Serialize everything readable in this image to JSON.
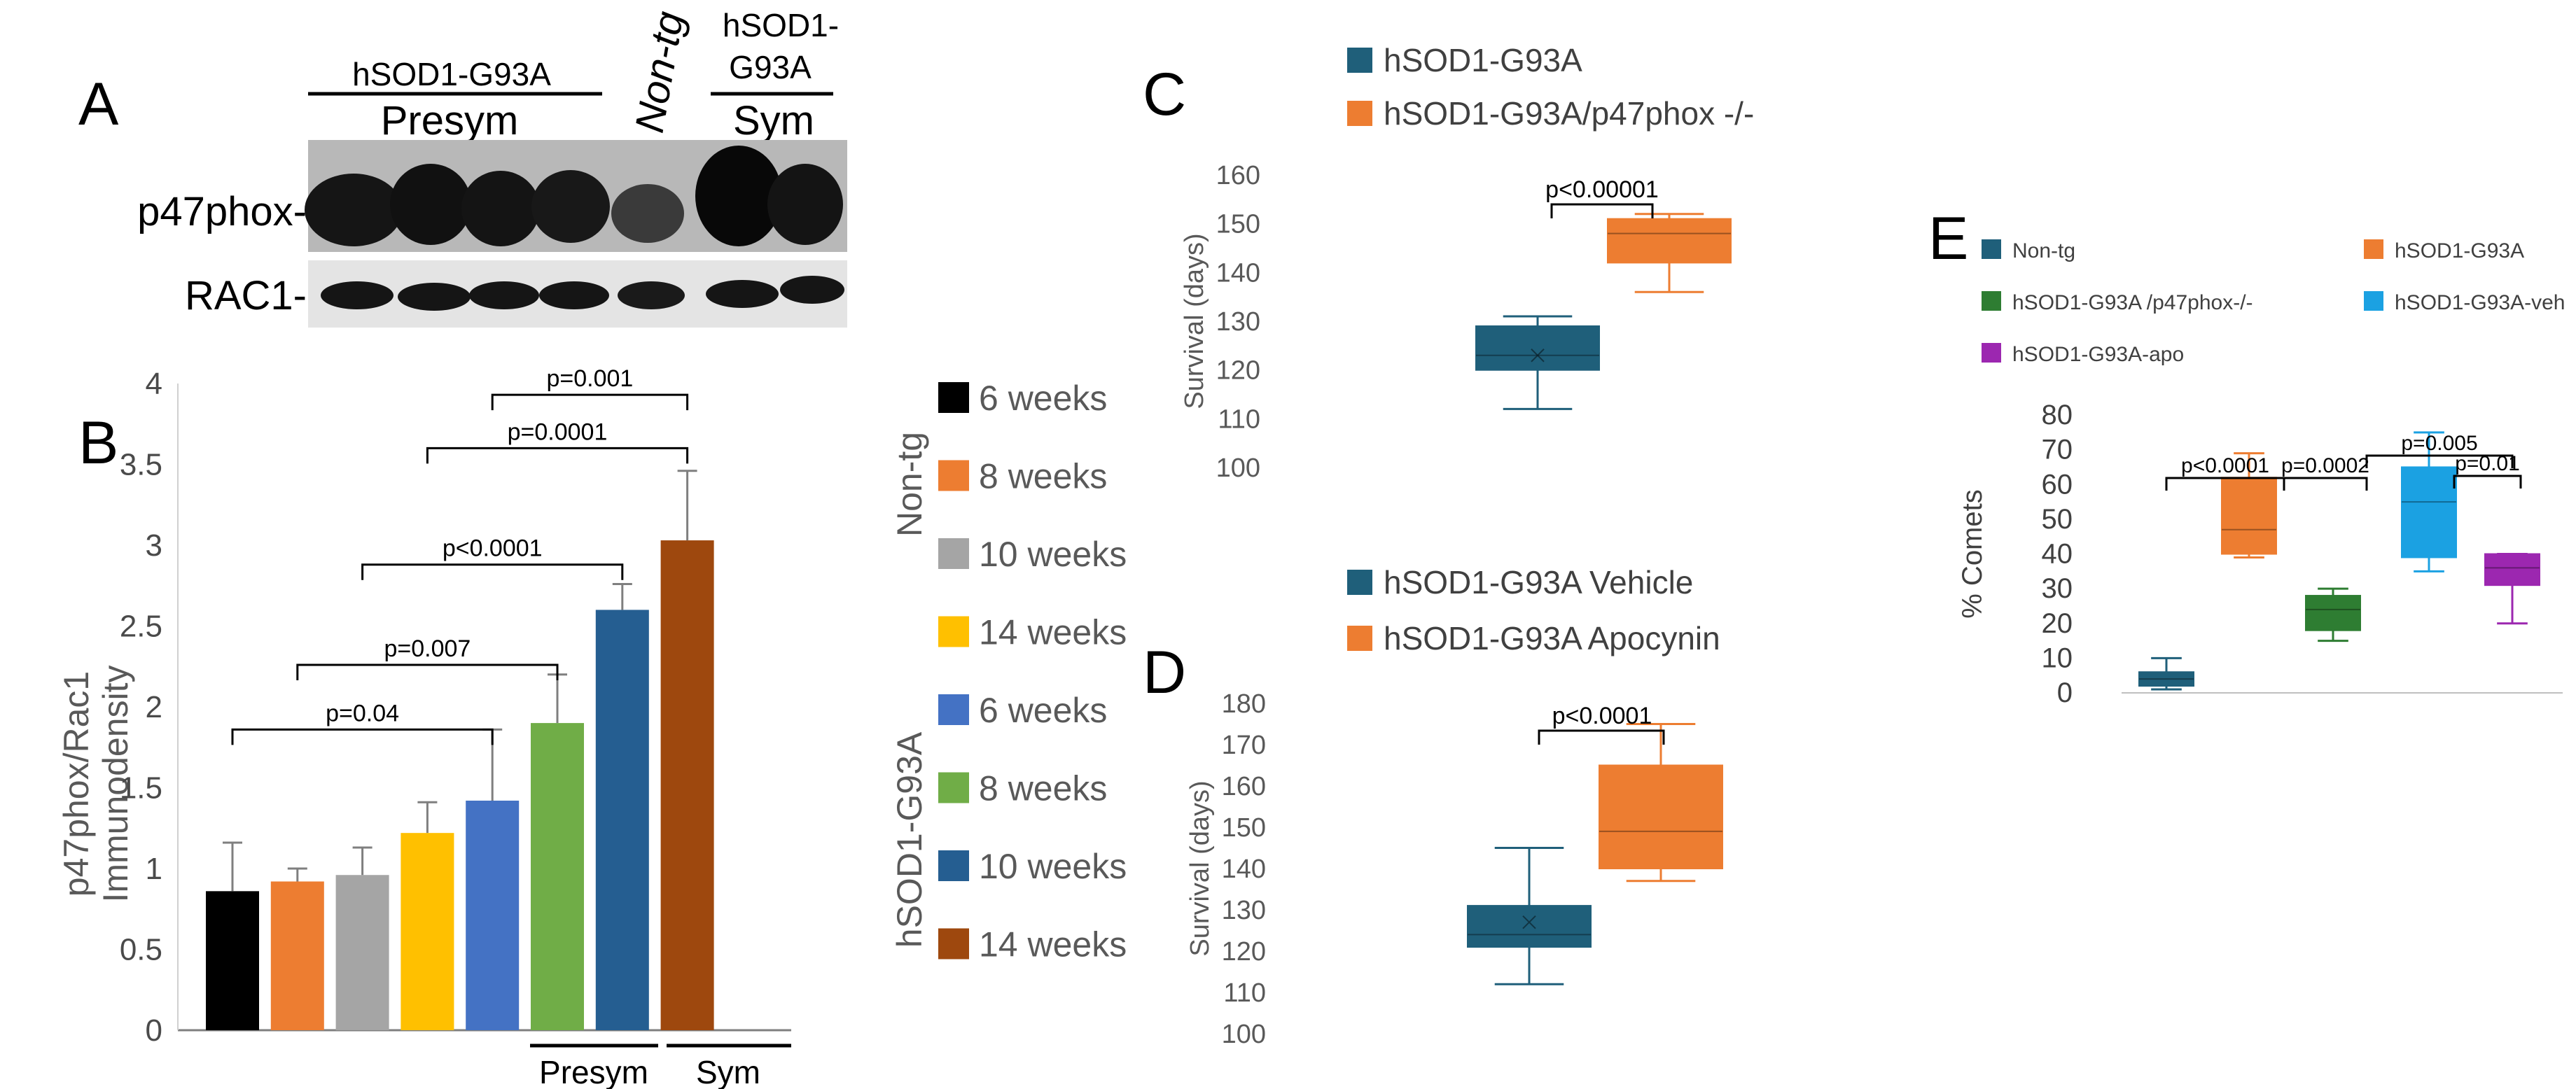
{
  "panelA": {
    "letter": "A",
    "group1": "hSOD1-G93A",
    "group1_sub": "Presym",
    "group2": "Non-tg",
    "group3_line1": "hSOD1-",
    "group3_line2": "G93A",
    "group3_sub": "Sym",
    "band1": "p47phox-",
    "band2": "RAC1-"
  },
  "panelB": {
    "letter": "B",
    "ylabel_line1": "p47phox/Rac1",
    "ylabel_line2": "Immunodensity",
    "presym_label": "Presym",
    "sym_label": "Sym",
    "group_nontg": "Non-tg",
    "group_tg": "hSOD1-G93A",
    "colors": [
      "#000000",
      "#ED7D31",
      "#A5A5A5",
      "#FFC000",
      "#4472C4",
      "#70AD47",
      "#255E91",
      "#9E480E"
    ]
  },
  "chart_data": [
    {
      "id": "B",
      "type": "bar",
      "title": "",
      "ylabel": "p47phox/Rac1 Immunodensity",
      "ylim": [
        0,
        4
      ],
      "yticks": [
        "0",
        "0.5",
        "1",
        "1.5",
        "2",
        "2.5",
        "3",
        "3.5",
        "4"
      ],
      "categories": [
        "6 weeks",
        "8 weeks",
        "10 weeks",
        "14 weeks",
        "6 weeks",
        "8 weeks",
        "10 weeks",
        "14 weeks"
      ],
      "values": [
        0.86,
        0.92,
        0.96,
        1.22,
        1.42,
        1.9,
        2.6,
        3.03
      ],
      "errors": [
        0.3,
        0.08,
        0.17,
        0.19,
        0.44,
        0.3,
        0.16,
        0.43
      ],
      "legend": [
        "6 weeks",
        "8 weeks",
        "10 weeks",
        "14 weeks",
        "6 weeks",
        "8 weeks",
        "10 weeks",
        "14 weeks"
      ],
      "comparisons": [
        {
          "from": 0,
          "to": 4,
          "label": "p=0.04",
          "level": 1.86
        },
        {
          "from": 1,
          "to": 5,
          "label": "p=0.007",
          "level": 2.26
        },
        {
          "from": 2,
          "to": 6,
          "label": "p<0.0001",
          "level": 2.88
        },
        {
          "from": 3,
          "to": 7,
          "label": "p=0.0001",
          "level": 3.6
        },
        {
          "from": 4,
          "to": 7,
          "label": "p=0.001",
          "level": 3.93
        }
      ]
    },
    {
      "id": "C",
      "type": "box",
      "ylabel": "Survival (days)",
      "ylim": [
        100,
        160
      ],
      "yticks": [
        "100",
        "110",
        "120",
        "130",
        "140",
        "150",
        "160"
      ],
      "series": [
        {
          "name": "hSOD1-G93A",
          "color": "#1F5F7A",
          "min": 112,
          "q1": 120,
          "median": 123,
          "q3": 129,
          "max": 131,
          "mean": 123
        },
        {
          "name": "hSOD1-G93A/p47phox -/-",
          "color": "#ED7D31",
          "min": 136,
          "q1": 142,
          "median": 148,
          "q3": 151,
          "max": 152
        }
      ],
      "comparisons": [
        {
          "label": "p<0.00001"
        }
      ]
    },
    {
      "id": "D",
      "type": "box",
      "ylabel": "Survival (days)",
      "ylim": [
        100,
        180
      ],
      "yticks": [
        "100",
        "110",
        "120",
        "130",
        "140",
        "150",
        "160",
        "170",
        "180"
      ],
      "series": [
        {
          "name": "hSOD1-G93A Vehicle",
          "color": "#1F5F7A",
          "min": 112,
          "q1": 121,
          "median": 124,
          "q3": 131,
          "max": 145,
          "mean": 127
        },
        {
          "name": "hSOD1-G93A Apocynin",
          "color": "#ED7D31",
          "min": 137,
          "q1": 140,
          "median": 149,
          "q3": 165,
          "max": 175
        }
      ],
      "comparisons": [
        {
          "label": "p<0.0001"
        }
      ]
    },
    {
      "id": "E",
      "type": "box",
      "ylabel": "% Comets",
      "ylim": [
        0,
        80
      ],
      "yticks": [
        "0",
        "10",
        "20",
        "30",
        "40",
        "50",
        "60",
        "70",
        "80"
      ],
      "series": [
        {
          "name": "Non-tg",
          "color": "#1F5F7A",
          "min": 1,
          "q1": 2,
          "median": 4,
          "q3": 6,
          "max": 10
        },
        {
          "name": "hSOD1-G93A",
          "color": "#ED7D31",
          "min": 39,
          "q1": 40,
          "median": 47,
          "q3": 62,
          "max": 69
        },
        {
          "name": "hSOD1-G93A /p47phox-/-",
          "color": "#2E7D32",
          "min": 15,
          "q1": 18,
          "median": 24,
          "q3": 28,
          "max": 30
        },
        {
          "name": "hSOD1-G93A-veh",
          "color": "#1BA1E2",
          "min": 35,
          "q1": 39,
          "median": 55,
          "q3": 65,
          "max": 75
        },
        {
          "name": "hSOD1-G93A-apo",
          "color": "#9C27B0",
          "min": 20,
          "q1": 31,
          "median": 36,
          "q3": 40,
          "max": 40
        }
      ],
      "comparisons": [
        {
          "from": 0,
          "to": 1,
          "label": "p<0.0001"
        },
        {
          "from": 1,
          "to": 2,
          "label": "p=0.0002"
        },
        {
          "from": 2,
          "to": 4,
          "label": "p=0.005"
        },
        {
          "from": 3,
          "to": 4,
          "label": "p=0.01"
        }
      ]
    }
  ],
  "panelC": {
    "letter": "C"
  },
  "panelD": {
    "letter": "D"
  },
  "panelE": {
    "letter": "E"
  }
}
